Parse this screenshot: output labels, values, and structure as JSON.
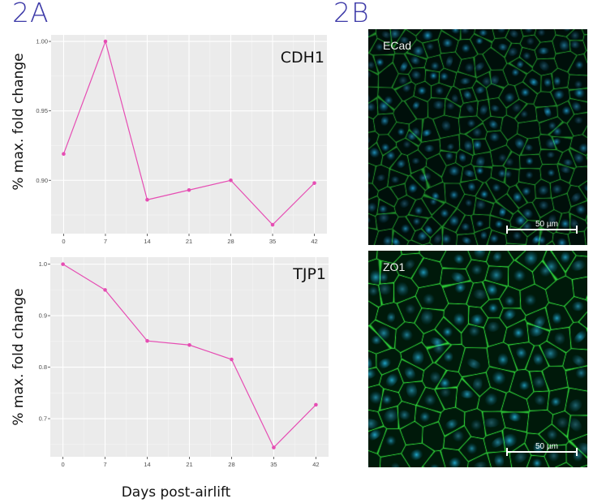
{
  "panels": {
    "a_label": "2A",
    "b_label": "2B"
  },
  "chart_data": [
    {
      "type": "line",
      "annotation": "CDH1",
      "ylabel": "% max. fold change",
      "xlabel": "Days post-airlift",
      "x": [
        0,
        7,
        14,
        21,
        28,
        35,
        42
      ],
      "x_tick_labels": [
        "0",
        "7",
        "14",
        "21",
        "28",
        "35",
        "42"
      ],
      "series": [
        {
          "values": [
            0.919,
            1.0,
            0.886,
            0.893,
            0.9,
            0.868,
            0.898
          ]
        }
      ],
      "y_ticks": [
        0.9,
        0.95,
        1.0
      ],
      "y_tick_labels": [
        "0.90",
        "0.95",
        "1.00"
      ],
      "ylim": [
        0.8616,
        1.0047
      ],
      "xlim": [
        -2.1,
        44.1
      ],
      "grid": true,
      "color": "#e64db3"
    },
    {
      "type": "line",
      "annotation": "TJP1",
      "ylabel": "% max. fold change",
      "xlabel": "Days post-airlift",
      "x": [
        0,
        7,
        14,
        21,
        28,
        35,
        42
      ],
      "x_tick_labels": [
        "0",
        "7",
        "14",
        "21",
        "28",
        "35",
        "42"
      ],
      "series": [
        {
          "values": [
            1.0,
            0.95,
            0.851,
            0.843,
            0.815,
            0.644,
            0.727
          ]
        }
      ],
      "y_ticks": [
        0.7,
        0.8,
        0.9,
        1.0
      ],
      "y_tick_labels": [
        "0.7",
        "0.8",
        "0.9",
        "1.0"
      ],
      "ylim": [
        0.626,
        1.0136
      ],
      "xlim": [
        -2.1,
        44.1
      ],
      "grid": true,
      "color": "#e64db3"
    }
  ],
  "shared_xlabel": "Days post-airlift",
  "micrographs": [
    {
      "label": "ECad",
      "scale_bar": "50 µm",
      "colors": {
        "nuclei": "#2fb8e6",
        "membrane": "#38d84a"
      }
    },
    {
      "label": "ZO1",
      "scale_bar": "50 µm",
      "colors": {
        "nuclei": "#2fb8e6",
        "membrane": "#38d84a"
      }
    }
  ]
}
